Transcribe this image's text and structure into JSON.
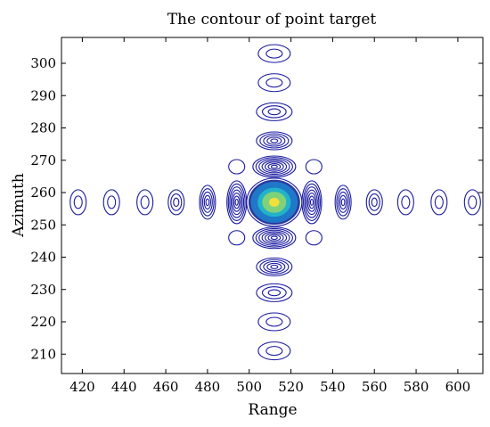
{
  "chart_data": {
    "type": "contour",
    "title": "The contour of point target",
    "xlabel": "Range",
    "ylabel": "Azimuth",
    "xlim": [
      410,
      612
    ],
    "ylim": [
      204,
      308
    ],
    "xticks": [
      420,
      440,
      460,
      480,
      500,
      520,
      540,
      560,
      580,
      600
    ],
    "yticks": [
      210,
      220,
      230,
      240,
      250,
      260,
      270,
      280,
      290,
      300
    ],
    "grid": false,
    "peak": {
      "x": 512,
      "y": 257
    },
    "range_sidelobes_x": [
      418,
      434,
      450,
      465,
      480,
      494,
      530,
      545,
      560,
      575,
      591,
      607
    ],
    "azimuth_sidelobes_y": [
      211,
      220,
      229,
      237,
      246,
      268,
      276,
      285,
      294,
      303
    ],
    "diagonal_sidelobes": [
      {
        "x": 494,
        "y": 268
      },
      {
        "x": 531,
        "y": 268
      },
      {
        "x": 494,
        "y": 246
      },
      {
        "x": 531,
        "y": 246
      }
    ],
    "contour_color": "#1a1aa0",
    "colormap": [
      "#2c3a9e",
      "#1f78c8",
      "#22b3c8",
      "#7fd27a",
      "#f2e03a"
    ]
  }
}
